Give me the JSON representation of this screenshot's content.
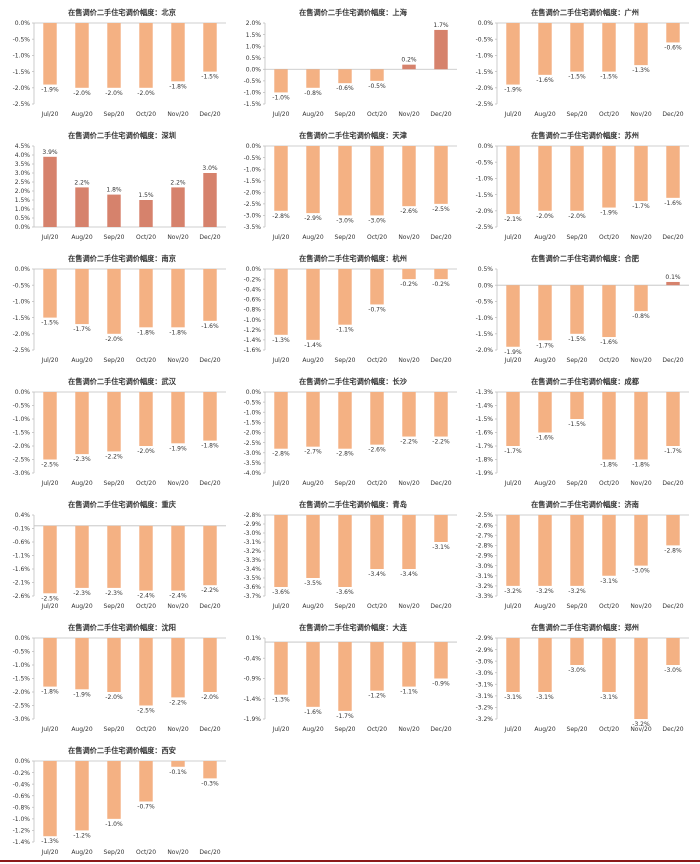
{
  "colors": {
    "negative": "#F4B183",
    "positive": "#D6826C",
    "axis": "#BFBFBF",
    "text": "#333333",
    "bottom_rule": "#8B1A1A"
  },
  "chart_data": [
    {
      "type": "bar",
      "title": "在售调价二手住宅调价幅度：北京",
      "categories": [
        "Jul/20",
        "Aug/20",
        "Sep/20",
        "Oct/20",
        "Nov/20",
        "Dec/20"
      ],
      "values": [
        -1.9,
        -2.0,
        -2.0,
        -2.0,
        -1.8,
        -1.5
      ],
      "labels": [
        "-1.9%",
        "-2.0%",
        "-2.0%",
        "-2.0%",
        "-1.8%",
        "-1.5%"
      ],
      "ylim": [
        -2.5,
        0.0
      ],
      "yticks": [
        "0.0%",
        "-0.5%",
        "-1.0%",
        "-1.5%",
        "-2.0%",
        "-2.5%"
      ]
    },
    {
      "type": "bar",
      "title": "在售调价二手住宅调价幅度：上海",
      "categories": [
        "Jul/20",
        "Aug/20",
        "Sep/20",
        "Oct/20",
        "Nov/20",
        "Dec/20"
      ],
      "values": [
        -1.0,
        -0.8,
        -0.6,
        -0.5,
        0.2,
        1.7
      ],
      "labels": [
        "-1.0%",
        "-0.8%",
        "-0.6%",
        "-0.5%",
        "0.2%",
        "1.7%"
      ],
      "ylim": [
        -1.5,
        2.0
      ],
      "yticks": [
        "2.0%",
        "1.5%",
        "1.0%",
        "0.5%",
        "0.0%",
        "-0.5%",
        "-1.0%",
        "-1.5%"
      ]
    },
    {
      "type": "bar",
      "title": "在售调价二手住宅调价幅度：广州",
      "categories": [
        "Jul/20",
        "Aug/20",
        "Sep/20",
        "Oct/20",
        "Nov/20",
        "Dec/20"
      ],
      "values": [
        -1.9,
        -1.6,
        -1.5,
        -1.5,
        -1.3,
        -0.6
      ],
      "labels": [
        "-1.9%",
        "-1.6%",
        "-1.5%",
        "-1.5%",
        "-1.3%",
        "-0.6%"
      ],
      "ylim": [
        -2.5,
        0.0
      ],
      "yticks": [
        "0.0%",
        "-0.5%",
        "-1.0%",
        "-1.5%",
        "-2.0%",
        "-2.5%"
      ]
    },
    {
      "type": "bar",
      "title": "在售调价二手住宅调价幅度：深圳",
      "categories": [
        "Jul/20",
        "Aug/20",
        "Sep/20",
        "Oct/20",
        "Nov/20",
        "Dec/20"
      ],
      "values": [
        3.9,
        2.2,
        1.8,
        1.5,
        2.2,
        3.0
      ],
      "labels": [
        "3.9%",
        "2.2%",
        "1.8%",
        "1.5%",
        "2.2%",
        "3.0%"
      ],
      "ylim": [
        0.0,
        4.5
      ],
      "yticks": [
        "4.5%",
        "4.0%",
        "3.5%",
        "3.0%",
        "2.5%",
        "2.0%",
        "1.5%",
        "1.0%",
        "0.5%",
        "0.0%"
      ]
    },
    {
      "type": "bar",
      "title": "在售调价二手住宅调价幅度：天津",
      "categories": [
        "Jul/20",
        "Aug/20",
        "Sep/20",
        "Oct/20",
        "Nov/20",
        "Dec/20"
      ],
      "values": [
        -2.8,
        -2.9,
        -3.0,
        -3.0,
        -2.6,
        -2.5
      ],
      "labels": [
        "-2.8%",
        "-2.9%",
        "-3.0%",
        "-3.0%",
        "-2.6%",
        "-2.5%"
      ],
      "ylim": [
        -3.5,
        0.0
      ],
      "yticks": [
        "0.0%",
        "-0.5%",
        "-1.0%",
        "-1.5%",
        "-2.0%",
        "-2.5%",
        "-3.0%",
        "-3.5%"
      ]
    },
    {
      "type": "bar",
      "title": "在售调价二手住宅调价幅度：苏州",
      "categories": [
        "Jul/20",
        "Aug/20",
        "Sep/20",
        "Oct/20",
        "Nov/20",
        "Dec/20"
      ],
      "values": [
        -2.1,
        -2.0,
        -2.0,
        -1.9,
        -1.7,
        -1.6
      ],
      "labels": [
        "-2.1%",
        "-2.0%",
        "-2.0%",
        "-1.9%",
        "-1.7%",
        "-1.6%"
      ],
      "ylim": [
        -2.5,
        0.0
      ],
      "yticks": [
        "0.0%",
        "-0.5%",
        "-1.0%",
        "-1.5%",
        "-2.0%",
        "-2.5%"
      ]
    },
    {
      "type": "bar",
      "title": "在售调价二手住宅调价幅度：南京",
      "categories": [
        "Jul/20",
        "Aug/20",
        "Sep/20",
        "Oct/20",
        "Nov/20",
        "Dec/20"
      ],
      "values": [
        -1.5,
        -1.7,
        -2.0,
        -1.8,
        -1.8,
        -1.6
      ],
      "labels": [
        "-1.5%",
        "-1.7%",
        "-2.0%",
        "-1.8%",
        "-1.8%",
        "-1.6%"
      ],
      "ylim": [
        -2.5,
        0.0
      ],
      "yticks": [
        "0.0%",
        "-0.5%",
        "-1.0%",
        "-1.5%",
        "-2.0%",
        "-2.5%"
      ]
    },
    {
      "type": "bar",
      "title": "在售调价二手住宅调价幅度：杭州",
      "categories": [
        "Jul/20",
        "Aug/20",
        "Sep/20",
        "Oct/20",
        "Nov/20",
        "Dec/20"
      ],
      "values": [
        -1.3,
        -1.4,
        -1.1,
        -0.7,
        -0.2,
        -0.2
      ],
      "labels": [
        "-1.3%",
        "-1.4%",
        "-1.1%",
        "-0.7%",
        "-0.2%",
        "-0.2%"
      ],
      "ylim": [
        -1.6,
        0.0
      ],
      "yticks": [
        "0.0%",
        "-0.2%",
        "-0.4%",
        "-0.6%",
        "-0.8%",
        "-1.0%",
        "-1.2%",
        "-1.4%",
        "-1.6%"
      ]
    },
    {
      "type": "bar",
      "title": "在售调价二手住宅调价幅度：合肥",
      "categories": [
        "Jul/20",
        "Aug/20",
        "Sep/20",
        "Oct/20",
        "Nov/20",
        "Dec/20"
      ],
      "values": [
        -1.9,
        -1.7,
        -1.5,
        -1.6,
        -0.8,
        0.1
      ],
      "labels": [
        "-1.9%",
        "-1.7%",
        "-1.5%",
        "-1.6%",
        "-0.8%",
        "0.1%"
      ],
      "ylim": [
        -2.0,
        0.5
      ],
      "yticks": [
        "0.5%",
        "0.0%",
        "-0.5%",
        "-1.0%",
        "-1.5%",
        "-2.0%"
      ]
    },
    {
      "type": "bar",
      "title": "在售调价二手住宅调价幅度：武汉",
      "categories": [
        "Jul/20",
        "Aug/20",
        "Sep/20",
        "Oct/20",
        "Nov/20",
        "Dec/20"
      ],
      "values": [
        -2.5,
        -2.3,
        -2.2,
        -2.0,
        -1.9,
        -1.8
      ],
      "labels": [
        "-2.5%",
        "-2.3%",
        "-2.2%",
        "-2.0%",
        "-1.9%",
        "-1.8%"
      ],
      "ylim": [
        -3.0,
        0.0
      ],
      "yticks": [
        "0.0%",
        "-0.5%",
        "-1.0%",
        "-1.5%",
        "-2.0%",
        "-2.5%",
        "-3.0%"
      ]
    },
    {
      "type": "bar",
      "title": "在售调价二手住宅调价幅度：长沙",
      "categories": [
        "Jul/20",
        "Aug/20",
        "Sep/20",
        "Oct/20",
        "Nov/20",
        "Dec/20"
      ],
      "values": [
        -2.8,
        -2.7,
        -2.8,
        -2.6,
        -2.2,
        -2.2
      ],
      "labels": [
        "-2.8%",
        "-2.7%",
        "-2.8%",
        "-2.6%",
        "-2.2%",
        "-2.2%"
      ],
      "ylim": [
        -4.0,
        0.0
      ],
      "yticks": [
        "0.0%",
        "-0.5%",
        "-1.0%",
        "-1.5%",
        "-2.0%",
        "-2.5%",
        "-3.0%",
        "-3.5%",
        "-4.0%"
      ]
    },
    {
      "type": "bar",
      "title": "在售调价二手住宅调价幅度：成都",
      "categories": [
        "Jul/20",
        "Aug/20",
        "Sep/20",
        "Oct/20",
        "Nov/20",
        "Dec/20"
      ],
      "values": [
        -1.7,
        -1.6,
        -1.5,
        -1.8,
        -1.8,
        -1.7
      ],
      "labels": [
        "-1.7%",
        "-1.6%",
        "-1.5%",
        "-1.8%",
        "-1.8%",
        "-1.7%"
      ],
      "ylim": [
        -1.9,
        -1.3
      ],
      "yticks": [
        "-1.3%",
        "-1.4%",
        "-1.5%",
        "-1.6%",
        "-1.7%",
        "-1.8%",
        "-1.9%"
      ]
    },
    {
      "type": "bar",
      "title": "在售调价二手住宅调价幅度：重庆",
      "categories": [
        "Jul/20",
        "Aug/20",
        "Sep/20",
        "Oct/20",
        "Nov/20",
        "Dec/20"
      ],
      "values": [
        -2.5,
        -2.3,
        -2.3,
        -2.4,
        -2.4,
        -2.2
      ],
      "labels": [
        "-2.5%",
        "-2.3%",
        "-2.3%",
        "-2.4%",
        "-2.4%",
        "-2.2%"
      ],
      "ylim": [
        -2.6,
        0.4
      ],
      "yticks": [
        "0.4%",
        "-0.1%",
        "-0.6%",
        "-1.1%",
        "-1.6%",
        "-2.1%",
        "-2.6%"
      ]
    },
    {
      "type": "bar",
      "title": "在售调价二手住宅调价幅度：青岛",
      "categories": [
        "Jul/20",
        "Aug/20",
        "Sep/20",
        "Oct/20",
        "Nov/20",
        "Dec/20"
      ],
      "values": [
        -3.6,
        -3.5,
        -3.6,
        -3.4,
        -3.4,
        -3.1
      ],
      "labels": [
        "-3.6%",
        "-3.5%",
        "-3.6%",
        "-3.4%",
        "-3.4%",
        "-3.1%"
      ],
      "ylim": [
        -3.7,
        -2.8
      ],
      "yticks": [
        "-2.8%",
        "-2.9%",
        "-3.0%",
        "-3.1%",
        "-3.2%",
        "-3.3%",
        "-3.4%",
        "-3.5%",
        "-3.6%",
        "-3.7%"
      ]
    },
    {
      "type": "bar",
      "title": "在售调价二手住宅调价幅度：济南",
      "categories": [
        "Jul/20",
        "Aug/20",
        "Sep/20",
        "Oct/20",
        "Nov/20",
        "Dec/20"
      ],
      "values": [
        -3.2,
        -3.2,
        -3.2,
        -3.1,
        -3.0,
        -2.8
      ],
      "labels": [
        "-3.2%",
        "-3.2%",
        "-3.2%",
        "-3.1%",
        "-3.0%",
        "-2.8%"
      ],
      "ylim": [
        -3.3,
        -2.5
      ],
      "yticks": [
        "-2.5%",
        "-2.6%",
        "-2.7%",
        "-2.8%",
        "-2.9%",
        "-3.0%",
        "-3.1%",
        "-3.2%",
        "-3.3%"
      ]
    },
    {
      "type": "bar",
      "title": "在售调价二手住宅调价幅度：沈阳",
      "categories": [
        "Jul/20",
        "Aug/20",
        "Sep/20",
        "Oct/20",
        "Nov/20",
        "Dec/20"
      ],
      "values": [
        -1.8,
        -1.9,
        -2.0,
        -2.5,
        -2.2,
        -2.0
      ],
      "labels": [
        "-1.8%",
        "-1.9%",
        "-2.0%",
        "-2.5%",
        "-2.2%",
        "-2.0%"
      ],
      "ylim": [
        -3.0,
        0.0
      ],
      "yticks": [
        "0.0%",
        "-0.5%",
        "-1.0%",
        "-1.5%",
        "-2.0%",
        "-2.5%",
        "-3.0%"
      ]
    },
    {
      "type": "bar",
      "title": "在售调价二手住宅调价幅度：大连",
      "categories": [
        "Jul/20",
        "Aug/20",
        "Sep/20",
        "Oct/20",
        "Nov/20",
        "Dec/20"
      ],
      "values": [
        -1.3,
        -1.6,
        -1.7,
        -1.2,
        -1.1,
        -0.9
      ],
      "labels": [
        "-1.3%",
        "-1.6%",
        "-1.7%",
        "-1.2%",
        "-1.1%",
        "-0.9%"
      ],
      "ylim": [
        -1.9,
        0.1
      ],
      "yticks": [
        "0.1%",
        "-0.4%",
        "-0.9%",
        "-1.4%",
        "-1.9%"
      ]
    },
    {
      "type": "bar",
      "title": "在售调价二手住宅调价幅度：郑州",
      "categories": [
        "Jul/20",
        "Aug/20",
        "Sep/20",
        "Oct/20",
        "Nov/20",
        "Dec/20"
      ],
      "values": [
        -3.1,
        -3.1,
        -3.0,
        -3.1,
        -3.2,
        -3.0
      ],
      "labels": [
        "-3.1%",
        "-3.1%",
        "-3.0%",
        "-3.1%",
        "-3.2%",
        "-3.0%"
      ],
      "ylim": [
        -3.2,
        -2.9
      ],
      "yticks": [
        "-2.9%",
        "-2.9%",
        "-3.0%",
        "-3.0%",
        "-3.1%",
        "-3.1%",
        "-3.2%",
        "-3.2%"
      ]
    },
    {
      "type": "bar",
      "title": "在售调价二手住宅调价幅度：西安",
      "categories": [
        "Jul/20",
        "Aug/20",
        "Sep/20",
        "Oct/20",
        "Nov/20",
        "Dec/20"
      ],
      "values": [
        -1.3,
        -1.2,
        -1.0,
        -0.7,
        -0.1,
        -0.3
      ],
      "labels": [
        "-1.3%",
        "-1.2%",
        "-1.0%",
        "-0.7%",
        "-0.1%",
        "-0.3%"
      ],
      "ylim": [
        -1.4,
        0.0
      ],
      "yticks": [
        "0.0%",
        "-0.2%",
        "-0.4%",
        "-0.6%",
        "-0.8%",
        "-1.0%",
        "-1.2%",
        "-1.4%"
      ]
    }
  ]
}
